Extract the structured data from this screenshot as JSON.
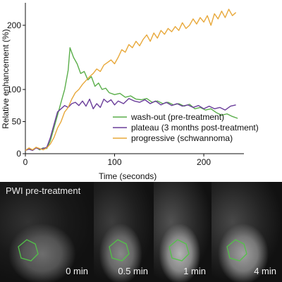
{
  "chart_data": {
    "type": "line",
    "xlabel": "Time (seconds)",
    "ylabel": "Relative enhancement (%)",
    "xlim": [
      0,
      245
    ],
    "ylim": [
      0,
      235
    ],
    "x_ticks": [
      0,
      100,
      200
    ],
    "y_ticks": [
      0,
      50,
      100,
      200
    ],
    "grid": false,
    "legend_position": "center-right",
    "series": [
      {
        "name": "wash-out (pre-treatment)",
        "color": "#5aae4a",
        "points": [
          [
            0,
            5
          ],
          [
            4,
            8
          ],
          [
            8,
            5
          ],
          [
            12,
            10
          ],
          [
            16,
            6
          ],
          [
            20,
            9
          ],
          [
            24,
            8
          ],
          [
            28,
            20
          ],
          [
            32,
            40
          ],
          [
            36,
            60
          ],
          [
            40,
            80
          ],
          [
            44,
            100
          ],
          [
            48,
            130
          ],
          [
            50,
            165
          ],
          [
            54,
            150
          ],
          [
            58,
            140
          ],
          [
            62,
            125
          ],
          [
            66,
            128
          ],
          [
            70,
            115
          ],
          [
            74,
            120
          ],
          [
            78,
            105
          ],
          [
            82,
            110
          ],
          [
            86,
            100
          ],
          [
            90,
            102
          ],
          [
            94,
            95
          ],
          [
            100,
            92
          ],
          [
            106,
            94
          ],
          [
            112,
            88
          ],
          [
            118,
            90
          ],
          [
            124,
            85
          ],
          [
            130,
            84
          ],
          [
            136,
            86
          ],
          [
            142,
            80
          ],
          [
            148,
            82
          ],
          [
            154,
            78
          ],
          [
            160,
            80
          ],
          [
            166,
            76
          ],
          [
            172,
            78
          ],
          [
            178,
            74
          ],
          [
            184,
            77
          ],
          [
            190,
            70
          ],
          [
            196,
            72
          ],
          [
            202,
            68
          ],
          [
            208,
            70
          ],
          [
            214,
            64
          ],
          [
            220,
            60
          ],
          [
            226,
            62
          ],
          [
            232,
            58
          ],
          [
            238,
            55
          ]
        ]
      },
      {
        "name": "plateau (3 months post-treatment)",
        "color": "#6a3d9a",
        "points": [
          [
            0,
            5
          ],
          [
            4,
            7
          ],
          [
            8,
            5
          ],
          [
            12,
            9
          ],
          [
            16,
            7
          ],
          [
            20,
            8
          ],
          [
            24,
            10
          ],
          [
            28,
            25
          ],
          [
            32,
            45
          ],
          [
            36,
            65
          ],
          [
            40,
            70
          ],
          [
            44,
            75
          ],
          [
            48,
            72
          ],
          [
            52,
            78
          ],
          [
            56,
            80
          ],
          [
            60,
            75
          ],
          [
            64,
            82
          ],
          [
            68,
            74
          ],
          [
            72,
            85
          ],
          [
            76,
            70
          ],
          [
            80,
            78
          ],
          [
            84,
            72
          ],
          [
            88,
            85
          ],
          [
            92,
            80
          ],
          [
            96,
            84
          ],
          [
            100,
            76
          ],
          [
            104,
            82
          ],
          [
            110,
            78
          ],
          [
            116,
            86
          ],
          [
            122,
            82
          ],
          [
            128,
            80
          ],
          [
            134,
            84
          ],
          [
            140,
            78
          ],
          [
            146,
            82
          ],
          [
            152,
            76
          ],
          [
            158,
            80
          ],
          [
            164,
            75
          ],
          [
            170,
            78
          ],
          [
            176,
            74
          ],
          [
            182,
            76
          ],
          [
            188,
            72
          ],
          [
            194,
            75
          ],
          [
            200,
            70
          ],
          [
            206,
            74
          ],
          [
            212,
            70
          ],
          [
            218,
            72
          ],
          [
            224,
            68
          ],
          [
            230,
            74
          ],
          [
            236,
            76
          ]
        ]
      },
      {
        "name": "progressive (schwannoma)",
        "color": "#e8a83a",
        "points": [
          [
            0,
            5
          ],
          [
            4,
            9
          ],
          [
            8,
            6
          ],
          [
            12,
            10
          ],
          [
            16,
            8
          ],
          [
            20,
            6
          ],
          [
            24,
            9
          ],
          [
            28,
            15
          ],
          [
            32,
            25
          ],
          [
            36,
            40
          ],
          [
            40,
            50
          ],
          [
            44,
            65
          ],
          [
            48,
            72
          ],
          [
            52,
            85
          ],
          [
            56,
            95
          ],
          [
            60,
            100
          ],
          [
            64,
            108
          ],
          [
            68,
            114
          ],
          [
            72,
            120
          ],
          [
            76,
            125
          ],
          [
            80,
            132
          ],
          [
            84,
            128
          ],
          [
            88,
            138
          ],
          [
            92,
            142
          ],
          [
            96,
            146
          ],
          [
            100,
            140
          ],
          [
            104,
            150
          ],
          [
            108,
            162
          ],
          [
            112,
            158
          ],
          [
            116,
            170
          ],
          [
            120,
            165
          ],
          [
            124,
            175
          ],
          [
            128,
            168
          ],
          [
            132,
            178
          ],
          [
            136,
            185
          ],
          [
            140,
            175
          ],
          [
            144,
            188
          ],
          [
            148,
            180
          ],
          [
            152,
            192
          ],
          [
            156,
            186
          ],
          [
            160,
            195
          ],
          [
            164,
            190
          ],
          [
            168,
            198
          ],
          [
            172,
            192
          ],
          [
            176,
            204
          ],
          [
            180,
            195
          ],
          [
            184,
            200
          ],
          [
            188,
            210
          ],
          [
            192,
            202
          ],
          [
            196,
            212
          ],
          [
            200,
            205
          ],
          [
            204,
            215
          ],
          [
            208,
            200
          ],
          [
            212,
            218
          ],
          [
            216,
            210
          ],
          [
            220,
            222
          ],
          [
            224,
            212
          ],
          [
            228,
            225
          ],
          [
            232,
            215
          ],
          [
            236,
            220
          ]
        ]
      }
    ]
  },
  "image_strip": {
    "caption": "PWI pre-treatment",
    "time_labels": [
      "0 min",
      "0.5 min",
      "1 min",
      "4 min"
    ],
    "roi_color": "#52c248",
    "panel_brightness": [
      0.55,
      0.68,
      0.9,
      0.8
    ]
  }
}
